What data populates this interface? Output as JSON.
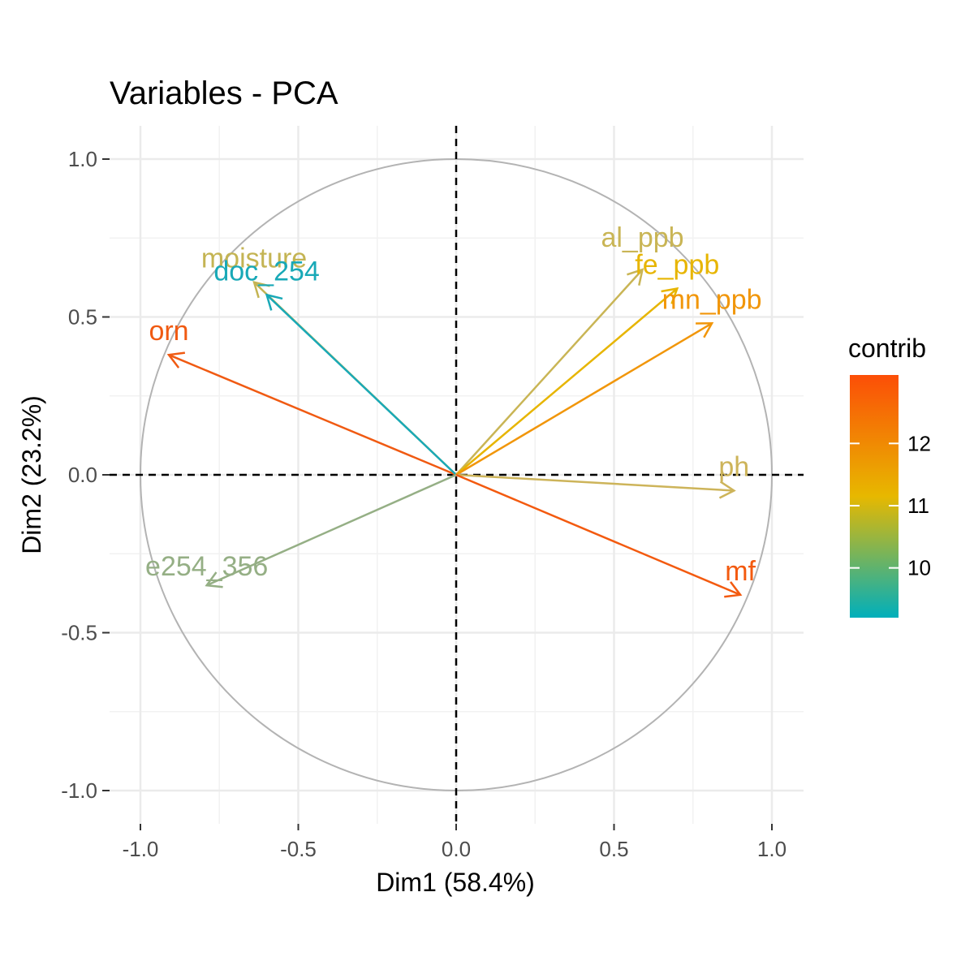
{
  "chart_data": {
    "type": "scatter",
    "title": "Variables - PCA",
    "xlabel": "Dim1 (58.4%)",
    "ylabel": "Dim2 (23.2%)",
    "xlim": [
      -1.0,
      1.0
    ],
    "ylim": [
      -1.0,
      1.0
    ],
    "x_ticks": [
      "-1.0",
      "-0.5",
      "0.0",
      "0.5",
      "1.0"
    ],
    "y_ticks": [
      "-1.0",
      "-0.5",
      "0.0",
      "0.5",
      "1.0"
    ],
    "grid": true,
    "unit_circle": true,
    "legend": {
      "title": "contrib",
      "position": "right",
      "min": 9.2,
      "max": 13.1,
      "ticks": [
        "10",
        "11",
        "12"
      ],
      "tick_values": [
        10,
        11,
        12
      ],
      "gradient_colors": [
        "#00AFBB",
        "#E7B800",
        "#FC4E07"
      ]
    },
    "variables": [
      {
        "name": "orn",
        "x": -0.91,
        "y": 0.38,
        "contrib": 13.0,
        "color": "#F05A12"
      },
      {
        "name": "moisture",
        "x": -0.64,
        "y": 0.61,
        "contrib": 10.5,
        "color": "#C4B453"
      },
      {
        "name": "doc_254",
        "x": -0.6,
        "y": 0.57,
        "contrib": 9.3,
        "color": "#19A9B7"
      },
      {
        "name": "e254_356",
        "x": -0.79,
        "y": -0.35,
        "contrib": 10.0,
        "color": "#95AF85"
      },
      {
        "name": "al_ppb",
        "x": 0.59,
        "y": 0.65,
        "contrib": 10.7,
        "color": "#C9B555"
      },
      {
        "name": "fe_ppb",
        "x": 0.7,
        "y": 0.59,
        "contrib": 11.2,
        "color": "#E7B500"
      },
      {
        "name": "mn_ppb",
        "x": 0.81,
        "y": 0.48,
        "contrib": 12.0,
        "color": "#F1960A"
      },
      {
        "name": "ph",
        "x": 0.88,
        "y": -0.05,
        "contrib": 10.6,
        "color": "#CDB45A"
      },
      {
        "name": "mf",
        "x": 0.9,
        "y": -0.38,
        "contrib": 12.9,
        "color": "#F35A0F"
      }
    ]
  }
}
